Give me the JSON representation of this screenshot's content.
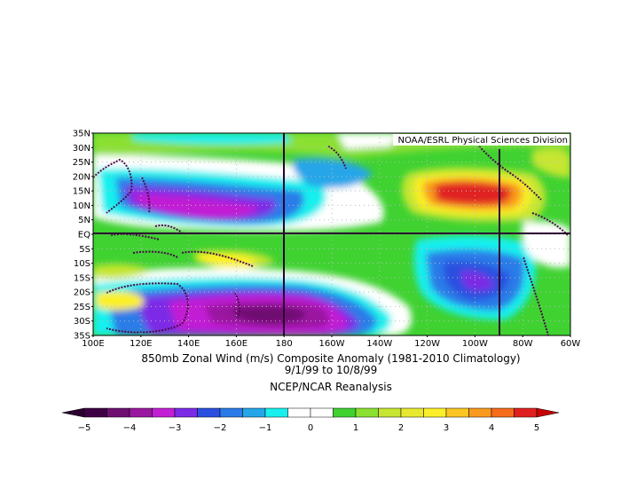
{
  "credit": "NOAA/ESRL Physical Sciences Division",
  "title_line1": "850mb Zonal Wind (m/s) Composite Anomaly (1981-2010 Climatology)",
  "title_line2": "9/1/99  to 10/8/99",
  "title_line3": "NCEP/NCAR Reanalysis",
  "lat_labels": [
    "35N",
    "30N",
    "25N",
    "20N",
    "15N",
    "10N",
    "5N",
    "EQ",
    "5S",
    "10S",
    "15S",
    "20S",
    "25S",
    "30S",
    "35S"
  ],
  "lon_labels": [
    "100E",
    "120E",
    "140E",
    "160E",
    "180",
    "160W",
    "140W",
    "120W",
    "100W",
    "80W",
    "60W"
  ],
  "colorbar": {
    "tick_labels": [
      "-5",
      "-4",
      "-3",
      "-2",
      "-1",
      "0",
      "1",
      "2",
      "3",
      "4",
      "5"
    ],
    "colors": [
      "#3d0045",
      "#6e1070",
      "#9a18a0",
      "#c21fd4",
      "#7b2be6",
      "#2b4fe0",
      "#2a7be8",
      "#26a6e9",
      "#17f0ee",
      "#ffffff",
      "#ffffff",
      "#3fd231",
      "#8be031",
      "#c6e631",
      "#e8e831",
      "#fbf028",
      "#fbc623",
      "#f99a1f",
      "#f66b1c",
      "#e02020"
    ]
  },
  "chart_data": {
    "type": "heatmap",
    "variable": "850mb Zonal Wind (m/s) Composite Anomaly",
    "period": "9/1/99  to 10/8/99",
    "x_range": [
      "100E",
      "60W"
    ],
    "y_range": [
      "35S",
      "35N"
    ],
    "value_range": [
      -5,
      5
    ],
    "features": [
      {
        "name": "easterly anomaly maximum",
        "lon": "165E",
        "lat": "27S",
        "value": -4.5
      },
      {
        "name": "easterly anomaly band",
        "lon": "140E",
        "lat": "7N",
        "value": -3.5
      },
      {
        "name": "westerly anomaly maximum",
        "lon": "105W",
        "lat": "12N",
        "value": 4.5
      },
      {
        "name": "easterly anomaly",
        "lon": "108W",
        "lat": "15S",
        "value": -2.5
      }
    ]
  }
}
